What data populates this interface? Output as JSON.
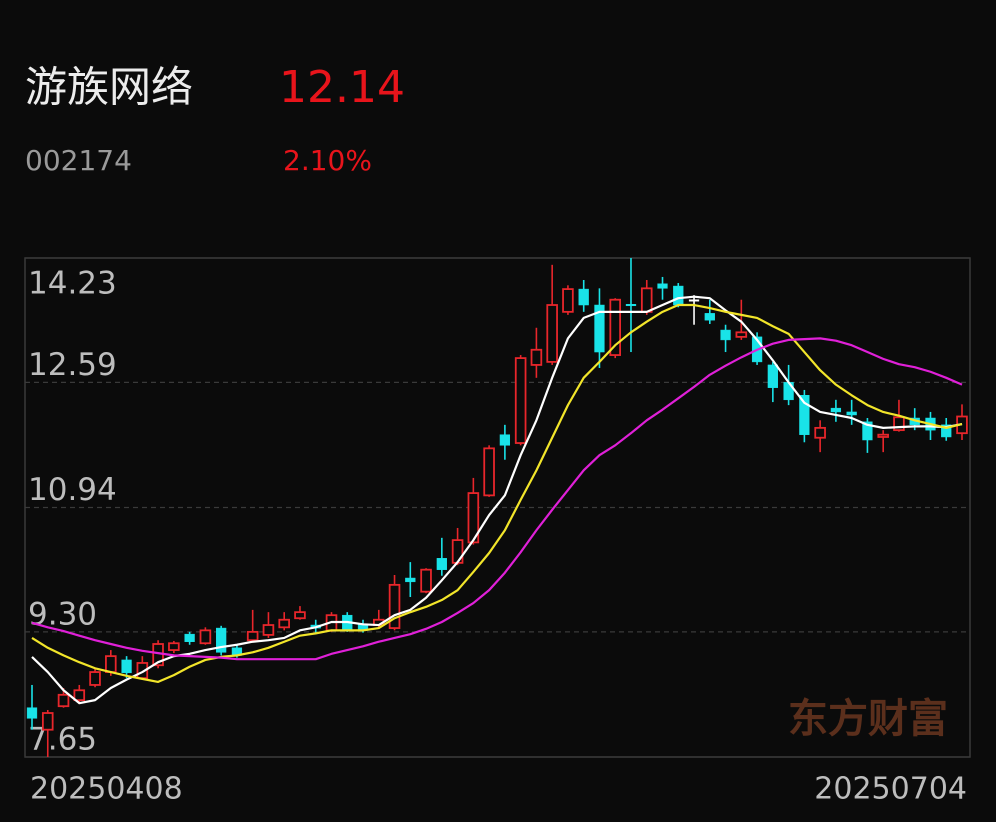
{
  "chart_data": {
    "type": "candlestick",
    "title": "游族网络",
    "price": "12.14",
    "code": "002174",
    "change": "2.10%",
    "watermark": "东方财富",
    "up_color": "#e8262b",
    "down_color": "#19e3e8",
    "flat_color": "#ffffff",
    "grid": true,
    "ylim": [
      7.65,
      14.23
    ],
    "yticks": [
      14.23,
      12.59,
      10.94,
      {
        "value": 9.3,
        "label": "9.30"
      },
      7.65
    ],
    "categories": [
      "20250408",
      null,
      null,
      null,
      null,
      null,
      null,
      null,
      null,
      null,
      null,
      null,
      null,
      null,
      null,
      null,
      null,
      null,
      null,
      null,
      null,
      null,
      null,
      null,
      null,
      null,
      null,
      null,
      null,
      null,
      null,
      null,
      null,
      null,
      null,
      null,
      null,
      null,
      null,
      null,
      null,
      null,
      null,
      null,
      null,
      null,
      null,
      null,
      null,
      null,
      null,
      null,
      null,
      null,
      null,
      null,
      null,
      null,
      null,
      "20250704"
    ],
    "open": [
      8.3,
      8.01,
      8.32,
      8.4,
      8.6,
      8.77,
      8.93,
      8.69,
      8.86,
      9.06,
      9.27,
      9.15,
      9.35,
      9.09,
      9.19,
      9.26,
      9.36,
      9.48,
      9.39,
      9.32,
      9.52,
      9.4,
      9.39,
      9.35,
      10.01,
      9.83,
      10.27,
      10.21,
      10.48,
      11.1,
      11.9,
      11.79,
      12.82,
      12.86,
      13.52,
      13.82,
      13.61,
      12.95,
      13.62,
      13.52,
      13.89,
      13.86,
      13.68,
      13.5,
      13.28,
      13.19,
      13.19,
      12.82,
      12.59,
      12.42,
      11.86,
      12.25,
      12.2,
      12.07,
      11.87,
      11.96,
      12.12,
      12.12,
      12.03,
      11.92
    ],
    "high": [
      8.6,
      8.27,
      8.56,
      8.6,
      8.82,
      9.06,
      8.98,
      8.98,
      9.19,
      9.18,
      9.3,
      9.36,
      9.38,
      9.13,
      9.59,
      9.56,
      9.56,
      9.64,
      9.46,
      9.56,
      9.56,
      9.46,
      9.59,
      10.05,
      10.22,
      10.14,
      10.54,
      10.67,
      11.33,
      11.76,
      12.03,
      12.95,
      13.31,
      14.14,
      13.87,
      13.94,
      13.83,
      13.7,
      14.23,
      13.94,
      13.98,
      13.9,
      13.74,
      13.68,
      13.35,
      13.68,
      13.25,
      12.86,
      12.82,
      12.49,
      12.09,
      12.36,
      12.36,
      12.12,
      11.96,
      12.36,
      12.25,
      12.2,
      12.12,
      12.3
    ],
    "low": [
      8.01,
      7.65,
      8.3,
      8.35,
      8.57,
      8.72,
      8.69,
      8.67,
      8.82,
      9.02,
      9.13,
      9.13,
      8.99,
      8.96,
      9.17,
      9.22,
      9.32,
      9.46,
      9.29,
      9.3,
      9.3,
      9.29,
      9.35,
      9.32,
      9.76,
      9.81,
      10.04,
      10.18,
      10.45,
      11.08,
      11.57,
      11.76,
      12.65,
      12.82,
      13.48,
      13.52,
      12.78,
      12.91,
      12.99,
      13.48,
      13.68,
      13.58,
      13.35,
      13.36,
      12.99,
      13.15,
      12.82,
      12.33,
      12.29,
      11.8,
      11.67,
      12.07,
      12.03,
      11.66,
      11.67,
      11.94,
      11.96,
      11.83,
      11.82,
      11.83
    ],
    "close": [
      8.16,
      8.23,
      8.47,
      8.53,
      8.77,
      8.98,
      8.76,
      8.89,
      9.14,
      9.15,
      9.17,
      9.32,
      9.03,
      8.99,
      9.3,
      9.39,
      9.46,
      9.56,
      9.35,
      9.52,
      9.32,
      9.32,
      9.46,
      9.92,
      9.96,
      10.12,
      10.12,
      10.51,
      11.13,
      11.72,
      11.76,
      12.91,
      13.02,
      13.61,
      13.82,
      13.61,
      12.99,
      13.68,
      13.6,
      13.83,
      13.83,
      13.61,
      13.68,
      13.41,
      13.15,
      13.25,
      12.86,
      12.52,
      12.36,
      11.9,
      11.99,
      12.2,
      12.16,
      11.83,
      11.9,
      12.13,
      12.03,
      11.96,
      11.87,
      12.14
    ],
    "ma": [
      {
        "color": "#ffffff",
        "values": [
          8.97,
          8.77,
          8.53,
          8.36,
          8.4,
          8.56,
          8.67,
          8.77,
          8.9,
          8.98,
          9.01,
          9.06,
          9.1,
          9.13,
          9.17,
          9.19,
          9.22,
          9.32,
          9.36,
          9.43,
          9.43,
          9.4,
          9.39,
          9.52,
          9.59,
          9.75,
          9.98,
          10.22,
          10.51,
          10.84,
          11.1,
          11.63,
          12.09,
          12.65,
          13.17,
          13.44,
          13.52,
          13.52,
          13.52,
          13.52,
          13.61,
          13.7,
          13.72,
          13.7,
          13.54,
          13.39,
          13.15,
          12.88,
          12.59,
          12.32,
          12.2,
          12.16,
          12.12,
          12.03,
          11.99,
          12.0,
          12.01,
          12.01,
          12.0,
          12.04
        ]
      },
      {
        "color": "#f2e52a",
        "values": [
          9.22,
          9.09,
          8.99,
          8.9,
          8.82,
          8.77,
          8.72,
          8.68,
          8.64,
          8.73,
          8.84,
          8.93,
          8.97,
          8.99,
          9.03,
          9.09,
          9.17,
          9.25,
          9.28,
          9.32,
          9.32,
          9.32,
          9.35,
          9.48,
          9.56,
          9.63,
          9.72,
          9.85,
          10.09,
          10.34,
          10.64,
          11.04,
          11.43,
          11.86,
          12.29,
          12.65,
          12.86,
          13.08,
          13.25,
          13.39,
          13.52,
          13.61,
          13.61,
          13.57,
          13.52,
          13.48,
          13.44,
          13.33,
          13.23,
          12.99,
          12.75,
          12.56,
          12.42,
          12.29,
          12.2,
          12.15,
          12.09,
          12.04,
          11.99,
          12.04
        ]
      },
      {
        "color": "#e020d8",
        "values": [
          9.42,
          9.36,
          9.31,
          9.25,
          9.19,
          9.14,
          9.09,
          9.05,
          9.02,
          8.99,
          8.98,
          8.97,
          8.96,
          8.94,
          8.94,
          8.94,
          8.94,
          8.94,
          8.94,
          9.01,
          9.06,
          9.11,
          9.17,
          9.22,
          9.27,
          9.34,
          9.43,
          9.55,
          9.68,
          9.85,
          10.08,
          10.35,
          10.64,
          10.91,
          11.17,
          11.43,
          11.63,
          11.76,
          11.92,
          12.09,
          12.23,
          12.38,
          12.53,
          12.69,
          12.81,
          12.92,
          13.02,
          13.1,
          13.15,
          13.16,
          13.17,
          13.14,
          13.08,
          12.99,
          12.9,
          12.83,
          12.79,
          12.73,
          12.65,
          12.56
        ]
      }
    ]
  }
}
